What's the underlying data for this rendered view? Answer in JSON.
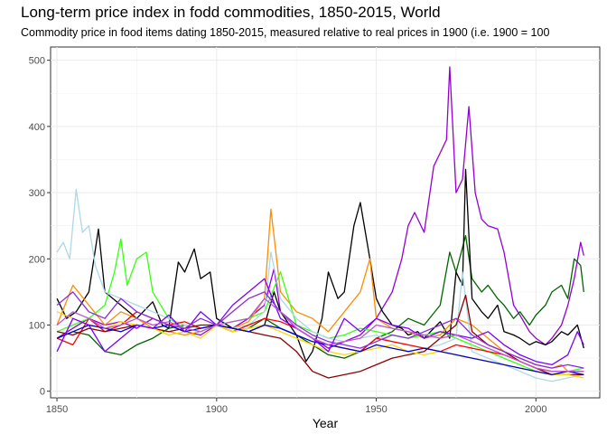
{
  "chart_data": {
    "type": "line",
    "title": "Long-term price index in fodd commodities, 1850-2015, World",
    "subtitle": "Commodity price in food items dating 1850-2015, measured relative to real prices in 1900 (i.e. 1900 = 100",
    "xlabel": "Year",
    "ylabel": "",
    "xlim": [
      1848,
      2020
    ],
    "ylim": [
      -10,
      520
    ],
    "x_ticks": [
      1850,
      1900,
      1950,
      2000
    ],
    "y_ticks": [
      0,
      100,
      200,
      300,
      400,
      500
    ],
    "grid": true,
    "legend": "none",
    "series": [
      {
        "color": "#9400D3",
        "x": [
          1850,
          1855,
          1860,
          1865,
          1870,
          1875,
          1880,
          1885,
          1890,
          1895,
          1900,
          1905,
          1910,
          1915,
          1918,
          1920,
          1925,
          1930,
          1935,
          1940,
          1945,
          1950,
          1955,
          1958,
          1960,
          1962,
          1965,
          1968,
          1970,
          1972,
          1973,
          1975,
          1977,
          1979,
          1981,
          1983,
          1985,
          1988,
          1990,
          1993,
          1995,
          1998,
          2000,
          2003,
          2005,
          2008,
          2010,
          2012,
          2014,
          2015
        ],
        "values": [
          80,
          95,
          110,
          100,
          105,
          95,
          110,
          100,
          90,
          85,
          100,
          95,
          110,
          130,
          185,
          120,
          95,
          80,
          65,
          75,
          85,
          110,
          150,
          200,
          250,
          270,
          240,
          340,
          360,
          380,
          490,
          300,
          320,
          430,
          300,
          260,
          250,
          245,
          210,
          130,
          115,
          90,
          80,
          70,
          80,
          100,
          130,
          170,
          225,
          205
        ]
      },
      {
        "color": "#006400",
        "x": [
          1850,
          1855,
          1860,
          1865,
          1870,
          1875,
          1880,
          1885,
          1890,
          1895,
          1900,
          1905,
          1910,
          1915,
          1920,
          1925,
          1930,
          1935,
          1940,
          1945,
          1950,
          1955,
          1960,
          1965,
          1970,
          1973,
          1975,
          1978,
          1980,
          1983,
          1985,
          1988,
          1990,
          1993,
          1995,
          1998,
          2000,
          2003,
          2005,
          2008,
          2010,
          2012,
          2014,
          2015
        ],
        "values": [
          80,
          90,
          85,
          60,
          55,
          70,
          80,
          95,
          100,
          95,
          100,
          90,
          95,
          110,
          95,
          85,
          70,
          55,
          50,
          60,
          80,
          90,
          110,
          100,
          130,
          210,
          180,
          235,
          170,
          150,
          160,
          140,
          130,
          110,
          120,
          100,
          115,
          130,
          150,
          160,
          140,
          200,
          190,
          150
        ]
      },
      {
        "color": "#000000",
        "x": [
          1850,
          1853,
          1856,
          1860,
          1863,
          1865,
          1870,
          1875,
          1880,
          1883,
          1885,
          1888,
          1890,
          1893,
          1895,
          1898,
          1900,
          1905,
          1910,
          1915,
          1918,
          1920,
          1925,
          1928,
          1930,
          1933,
          1935,
          1938,
          1940,
          1943,
          1945,
          1948,
          1950,
          1952,
          1955,
          1958,
          1960,
          1963,
          1965,
          1968,
          1970,
          1973,
          1975,
          1977,
          1978,
          1980,
          1983,
          1985,
          1988,
          1990,
          1993,
          1995,
          1998,
          2000,
          2003,
          2005,
          2008,
          2010,
          2013,
          2015
        ],
        "values": [
          140,
          110,
          120,
          150,
          245,
          150,
          130,
          110,
          135,
          100,
          95,
          195,
          180,
          215,
          170,
          180,
          110,
          95,
          90,
          100,
          150,
          120,
          85,
          45,
          60,
          110,
          180,
          140,
          150,
          250,
          285,
          200,
          140,
          120,
          100,
          95,
          85,
          90,
          80,
          95,
          105,
          80,
          180,
          160,
          335,
          140,
          120,
          110,
          130,
          90,
          85,
          80,
          70,
          75,
          70,
          75,
          90,
          85,
          100,
          65
        ]
      },
      {
        "color": "#FF8C00",
        "x": [
          1850,
          1855,
          1860,
          1865,
          1870,
          1875,
          1880,
          1885,
          1890,
          1895,
          1900,
          1905,
          1910,
          1915,
          1917,
          1920,
          1925,
          1930,
          1935,
          1940,
          1945,
          1948,
          1950,
          1955,
          1960,
          1965,
          1970,
          1975,
          1980,
          1985,
          1990,
          1995,
          2000,
          2005,
          2008,
          2010,
          2015
        ],
        "values": [
          100,
          160,
          130,
          100,
          120,
          110,
          95,
          90,
          85,
          90,
          100,
          95,
          105,
          140,
          275,
          150,
          120,
          110,
          90,
          120,
          150,
          200,
          110,
          95,
          90,
          80,
          85,
          110,
          100,
          80,
          60,
          50,
          40,
          35,
          40,
          30,
          30
        ]
      },
      {
        "color": "#39FF14",
        "x": [
          1850,
          1855,
          1860,
          1865,
          1868,
          1870,
          1872,
          1875,
          1878,
          1880,
          1885,
          1890,
          1895,
          1900,
          1905,
          1910,
          1915,
          1920,
          1925,
          1930,
          1935,
          1940,
          1945,
          1950,
          1955,
          1960,
          1965,
          1970,
          1975,
          1980,
          1985,
          1990,
          1995,
          2000,
          2005,
          2010,
          2015
        ],
        "values": [
          90,
          100,
          110,
          130,
          180,
          230,
          160,
          200,
          210,
          150,
          110,
          95,
          90,
          100,
          105,
          110,
          120,
          180,
          100,
          90,
          80,
          85,
          95,
          90,
          85,
          80,
          85,
          90,
          80,
          70,
          60,
          50,
          40,
          30,
          25,
          30,
          35
        ]
      },
      {
        "color": "#ADD8E6",
        "x": [
          1850,
          1852,
          1854,
          1856,
          1858,
          1860,
          1862,
          1865,
          1870,
          1875,
          1880,
          1885,
          1890,
          1895,
          1900,
          1905,
          1910,
          1915,
          1917,
          1920,
          1925,
          1930,
          1935,
          1940,
          1945,
          1950,
          1955,
          1960,
          1965,
          1970,
          1975,
          1977,
          1980,
          1985,
          1990,
          1995,
          2000,
          2005,
          2010,
          2015
        ],
        "values": [
          210,
          225,
          200,
          305,
          240,
          250,
          190,
          150,
          140,
          130,
          120,
          110,
          100,
          95,
          100,
          95,
          100,
          120,
          210,
          140,
          110,
          90,
          80,
          75,
          80,
          85,
          75,
          70,
          65,
          70,
          80,
          180,
          60,
          50,
          40,
          30,
          20,
          15,
          20,
          25
        ]
      },
      {
        "color": "#FF0000",
        "x": [
          1850,
          1855,
          1860,
          1865,
          1870,
          1875,
          1880,
          1885,
          1890,
          1895,
          1900,
          1905,
          1910,
          1915,
          1920,
          1925,
          1930,
          1935,
          1940,
          1945,
          1950,
          1955,
          1960,
          1965,
          1970,
          1975,
          1980,
          1985,
          1990,
          1995,
          2000,
          2005,
          2010,
          2015
        ],
        "values": [
          80,
          70,
          110,
          90,
          100,
          120,
          110,
          100,
          105,
          95,
          100,
          90,
          100,
          110,
          105,
          95,
          80,
          70,
          65,
          60,
          80,
          75,
          70,
          65,
          60,
          70,
          65,
          60,
          55,
          45,
          35,
          30,
          30,
          30
        ]
      },
      {
        "color": "#8B0000",
        "x": [
          1850,
          1855,
          1860,
          1865,
          1870,
          1875,
          1880,
          1885,
          1890,
          1895,
          1900,
          1905,
          1910,
          1915,
          1920,
          1925,
          1930,
          1935,
          1940,
          1945,
          1950,
          1955,
          1960,
          1965,
          1970,
          1975,
          1978,
          1980,
          1985,
          1990,
          1995,
          2000,
          2005,
          2010,
          2015
        ],
        "values": [
          90,
          85,
          95,
          90,
          95,
          100,
          95,
          90,
          95,
          100,
          100,
          95,
          90,
          85,
          80,
          60,
          30,
          20,
          25,
          30,
          40,
          50,
          55,
          60,
          80,
          100,
          145,
          90,
          70,
          60,
          45,
          35,
          25,
          25,
          25
        ]
      },
      {
        "color": "#FFD700",
        "x": [
          1850,
          1855,
          1860,
          1865,
          1870,
          1875,
          1880,
          1885,
          1890,
          1895,
          1900,
          1905,
          1910,
          1915,
          1920,
          1925,
          1930,
          1935,
          1940,
          1945,
          1950,
          1955,
          1960,
          1965,
          1970,
          1975,
          1980,
          1985,
          1990,
          1995,
          2000,
          2005,
          2010,
          2015
        ],
        "values": [
          120,
          110,
          100,
          95,
          105,
          100,
          95,
          85,
          90,
          80,
          100,
          90,
          95,
          100,
          90,
          80,
          70,
          60,
          55,
          60,
          65,
          70,
          60,
          55,
          60,
          55,
          50,
          45,
          40,
          35,
          30,
          25,
          25,
          20
        ]
      },
      {
        "color": "#0000CD",
        "x": [
          1850,
          1855,
          1860,
          1865,
          1870,
          1875,
          1880,
          1885,
          1890,
          1895,
          1900,
          1905,
          1910,
          1915,
          1920,
          1925,
          1930,
          1935,
          1940,
          1945,
          1950,
          1955,
          1960,
          1965,
          1970,
          1975,
          1980,
          1985,
          1990,
          1995,
          2000,
          2005,
          2010,
          2015
        ],
        "values": [
          80,
          90,
          100,
          95,
          90,
          100,
          95,
          100,
          90,
          95,
          100,
          95,
          90,
          100,
          95,
          85,
          75,
          70,
          65,
          60,
          70,
          65,
          60,
          65,
          60,
          55,
          50,
          45,
          40,
          35,
          30,
          25,
          30,
          25
        ]
      },
      {
        "color": "#7B00FF",
        "x": [
          1850,
          1855,
          1860,
          1865,
          1870,
          1875,
          1880,
          1885,
          1890,
          1895,
          1900,
          1905,
          1910,
          1915,
          1920,
          1925,
          1930,
          1935,
          1940,
          1945,
          1950,
          1955,
          1960,
          1965,
          1970,
          1975,
          1980,
          1985,
          1990,
          1995,
          2000,
          2005,
          2010,
          2013,
          2015
        ],
        "values": [
          60,
          110,
          100,
          60,
          80,
          100,
          95,
          115,
          90,
          120,
          100,
          130,
          150,
          170,
          110,
          95,
          80,
          60,
          110,
          90,
          110,
          100,
          95,
          80,
          90,
          85,
          80,
          90,
          70,
          55,
          45,
          40,
          55,
          90,
          70
        ]
      },
      {
        "color": "#8A2BE2",
        "x": [
          1850,
          1855,
          1860,
          1865,
          1870,
          1875,
          1880,
          1885,
          1890,
          1895,
          1900,
          1905,
          1910,
          1915,
          1920,
          1925,
          1930,
          1935,
          1940,
          1945,
          1950,
          1955,
          1960,
          1965,
          1970,
          1975,
          1980,
          1985,
          1990,
          1995,
          2000,
          2005,
          2010,
          2015
        ],
        "values": [
          130,
          150,
          120,
          110,
          140,
          120,
          110,
          100,
          95,
          110,
          100,
          120,
          140,
          150,
          120,
          100,
          85,
          75,
          70,
          65,
          75,
          85,
          80,
          90,
          100,
          110,
          85,
          70,
          60,
          50,
          40,
          35,
          40,
          35
        ]
      },
      {
        "color": "#BA55D3",
        "x": [
          1850,
          1855,
          1860,
          1865,
          1870,
          1875,
          1880,
          1885,
          1890,
          1895,
          1900,
          1905,
          1910,
          1915,
          1920,
          1925,
          1930,
          1935,
          1940,
          1945,
          1950,
          1955,
          1960,
          1965,
          1970,
          1975,
          1980,
          1985,
          1990,
          1995,
          2000,
          2005,
          2010,
          2015
        ],
        "values": [
          100,
          120,
          110,
          95,
          100,
          110,
          100,
          105,
          95,
          90,
          100,
          105,
          110,
          140,
          120,
          95,
          80,
          70,
          75,
          80,
          100,
          95,
          90,
          85,
          80,
          85,
          75,
          65,
          55,
          45,
          35,
          30,
          30,
          30
        ]
      }
    ]
  }
}
